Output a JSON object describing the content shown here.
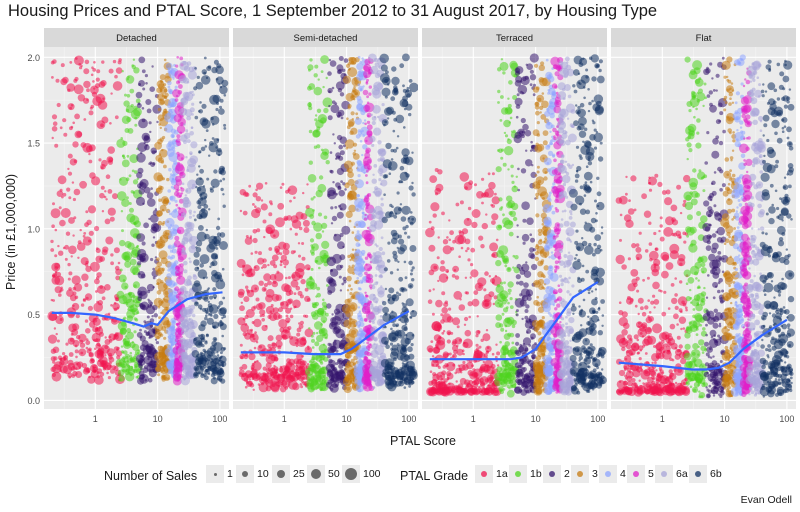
{
  "chart_data": {
    "type": "scatter",
    "title": "Housing Prices and PTAL Score, 1 September 2012 to 31 August 2017, by Housing Type",
    "xlabel": "PTAL Score",
    "ylabel": "Price (in £1,000,000)",
    "caption": "Evan Odell",
    "x_scale": "log10",
    "xlim": [
      0.15,
      140
    ],
    "ylim": [
      -0.05,
      2.06
    ],
    "x_ticks": [
      1,
      10,
      100
    ],
    "x_tick_labels": [
      "1",
      "10",
      "100"
    ],
    "y_ticks": [
      0.0,
      0.5,
      1.0,
      1.5,
      2.0
    ],
    "y_tick_labels": [
      "0.0",
      "0.5",
      "1.0",
      "1.5",
      "2.0"
    ],
    "grid": true,
    "legend_position": "bottom",
    "size_legend": {
      "title": "Number of Sales",
      "values": [
        1,
        10,
        25,
        50,
        100
      ],
      "labels": [
        "1",
        "10",
        "25",
        "50",
        "100"
      ]
    },
    "color_legend": {
      "title": "PTAL Grade",
      "grades": [
        {
          "label": "1a",
          "color": "#f0144f",
          "x_range": [
            0.2,
            2.5
          ]
        },
        {
          "label": "1b",
          "color": "#4fd41f",
          "x_range": [
            2.5,
            5
          ]
        },
        {
          "label": "2",
          "color": "#34166e",
          "x_range": [
            5,
            10
          ]
        },
        {
          "label": "3",
          "color": "#c77b12",
          "x_range": [
            10,
            15
          ]
        },
        {
          "label": "4",
          "color": "#8ea4ff",
          "x_range": [
            15,
            20
          ]
        },
        {
          "label": "5",
          "color": "#e020c8",
          "x_range": [
            20,
            25
          ]
        },
        {
          "label": "6a",
          "color": "#a7a4d8",
          "x_range": [
            25,
            40
          ]
        },
        {
          "label": "6b",
          "color": "#123263",
          "x_range": [
            40,
            120
          ]
        }
      ]
    },
    "trend_color": "#3366ff",
    "panels": [
      {
        "title": "Detached",
        "x_extent": [
          0.2,
          120
        ],
        "smooth": [
          [
            0.2,
            0.51
          ],
          [
            0.4,
            0.51
          ],
          [
            1,
            0.5
          ],
          [
            2,
            0.48
          ],
          [
            4,
            0.45
          ],
          [
            6,
            0.43
          ],
          [
            8,
            0.45
          ],
          [
            10,
            0.44
          ],
          [
            15,
            0.52
          ],
          [
            30,
            0.59
          ],
          [
            60,
            0.62
          ],
          [
            110,
            0.63
          ]
        ]
      },
      {
        "title": "Semi-detached",
        "x_extent": [
          0.2,
          120
        ],
        "smooth": [
          [
            0.2,
            0.28
          ],
          [
            1,
            0.28
          ],
          [
            3,
            0.27
          ],
          [
            5,
            0.27
          ],
          [
            8,
            0.27
          ],
          [
            12,
            0.3
          ],
          [
            20,
            0.36
          ],
          [
            40,
            0.44
          ],
          [
            100,
            0.52
          ]
        ]
      },
      {
        "title": "Terraced",
        "x_extent": [
          0.2,
          120
        ],
        "smooth": [
          [
            0.2,
            0.24
          ],
          [
            1,
            0.24
          ],
          [
            4,
            0.24
          ],
          [
            6,
            0.25
          ],
          [
            10,
            0.3
          ],
          [
            20,
            0.45
          ],
          [
            40,
            0.6
          ],
          [
            100,
            0.69
          ]
        ]
      },
      {
        "title": "Flat",
        "x_extent": [
          0.2,
          120
        ],
        "smooth": [
          [
            0.2,
            0.22
          ],
          [
            1,
            0.2
          ],
          [
            3,
            0.18
          ],
          [
            5,
            0.18
          ],
          [
            8,
            0.19
          ],
          [
            12,
            0.22
          ],
          [
            20,
            0.3
          ],
          [
            40,
            0.38
          ],
          [
            100,
            0.47
          ]
        ]
      }
    ]
  }
}
